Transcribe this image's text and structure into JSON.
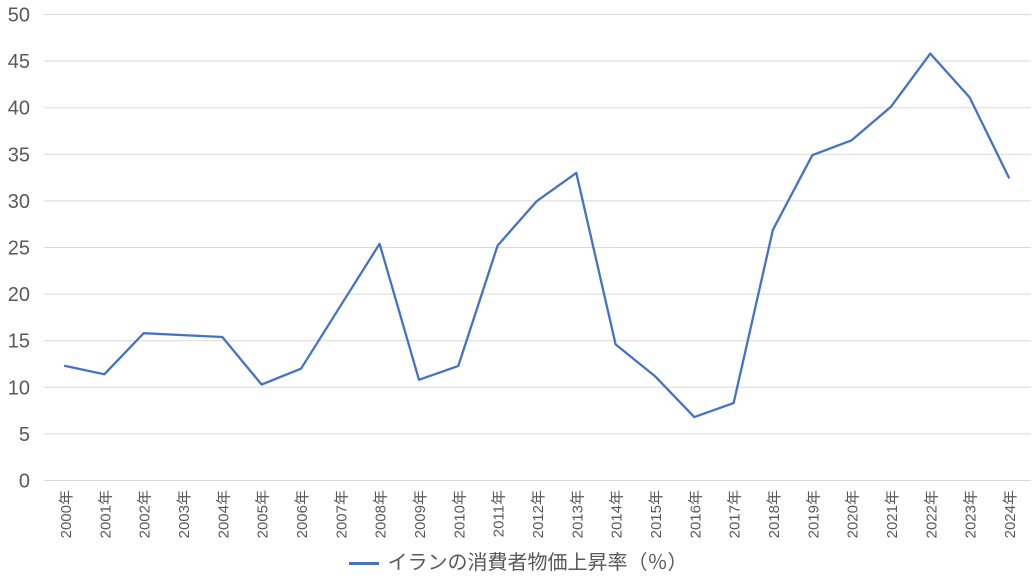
{
  "chart_data": {
    "type": "line",
    "title": "",
    "categories": [
      "2000年",
      "2001年",
      "2002年",
      "2003年",
      "2004年",
      "2005年",
      "2006年",
      "2007年",
      "2008年",
      "2009年",
      "2010年",
      "2011年",
      "2012年",
      "2013年",
      "2014年",
      "2015年",
      "2016年",
      "2017年",
      "2018年",
      "2019年",
      "2020年",
      "2021年",
      "2022年",
      "2023年",
      "2024年"
    ],
    "series": [
      {
        "name": "イランの消費者物価上昇率（％）",
        "values": [
          12.3,
          11.4,
          15.8,
          15.6,
          15.4,
          10.3,
          12.0,
          18.7,
          25.4,
          10.8,
          12.3,
          25.2,
          30.0,
          33.0,
          14.6,
          11.2,
          6.8,
          8.3,
          26.9,
          34.9,
          36.5,
          40.1,
          45.8,
          41.1,
          32.5
        ]
      }
    ],
    "xlabel": "",
    "ylabel": "",
    "ylim": [
      0,
      50
    ],
    "yticks": [
      0,
      5,
      10,
      15,
      20,
      25,
      30,
      35,
      40,
      45,
      50
    ],
    "grid": true,
    "legend_position": "bottom"
  },
  "legend": {
    "label": "イランの消費者物価上昇率（％）"
  },
  "colors": {
    "line": "#4472C4",
    "tick_label": "#595959",
    "gridline": "#D9D9D9",
    "background": "#FFFFFF"
  }
}
